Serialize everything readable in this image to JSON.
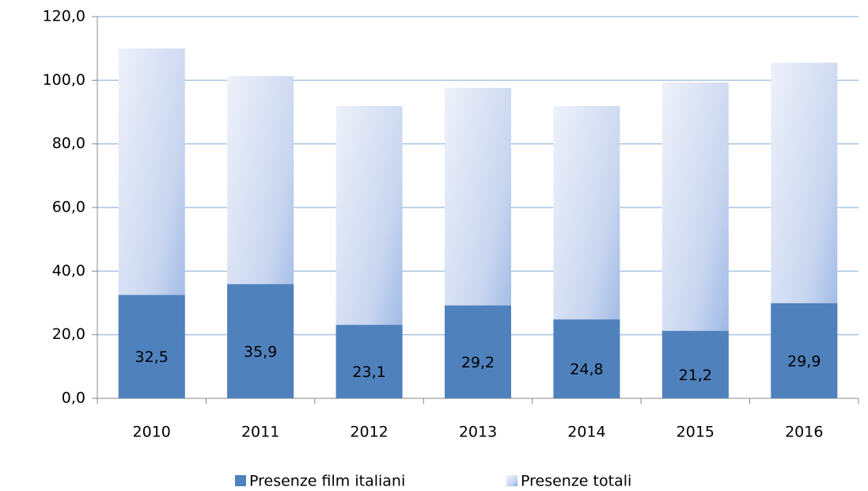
{
  "chart_data": {
    "type": "bar",
    "categories": [
      "2010",
      "2011",
      "2012",
      "2013",
      "2014",
      "2015",
      "2016"
    ],
    "series": [
      {
        "name": "Presenze film italiani",
        "color": "#4f81bd",
        "values": [
          32.5,
          35.9,
          23.1,
          29.2,
          24.8,
          21.2,
          29.9
        ],
        "value_labels": [
          "32,5",
          "35,9",
          "23,1",
          "29,2",
          "24,8",
          "21,2",
          "29,9"
        ]
      },
      {
        "name": "Presenze totali",
        "color": "#c9d6f0",
        "values": [
          110.0,
          101.3,
          91.9,
          97.6,
          91.9,
          99.3,
          105.5
        ]
      }
    ],
    "ylim": [
      0,
      120
    ],
    "yticks": [
      {
        "value": 0,
        "label": "0,0"
      },
      {
        "value": 20,
        "label": "20,0"
      },
      {
        "value": 40,
        "label": "40,0"
      },
      {
        "value": 60,
        "label": "60,0"
      },
      {
        "value": 80,
        "label": "80,0"
      },
      {
        "value": 100,
        "label": "100,0"
      },
      {
        "value": 120,
        "label": "120,0"
      }
    ],
    "grid": true,
    "legend": "bottom"
  }
}
